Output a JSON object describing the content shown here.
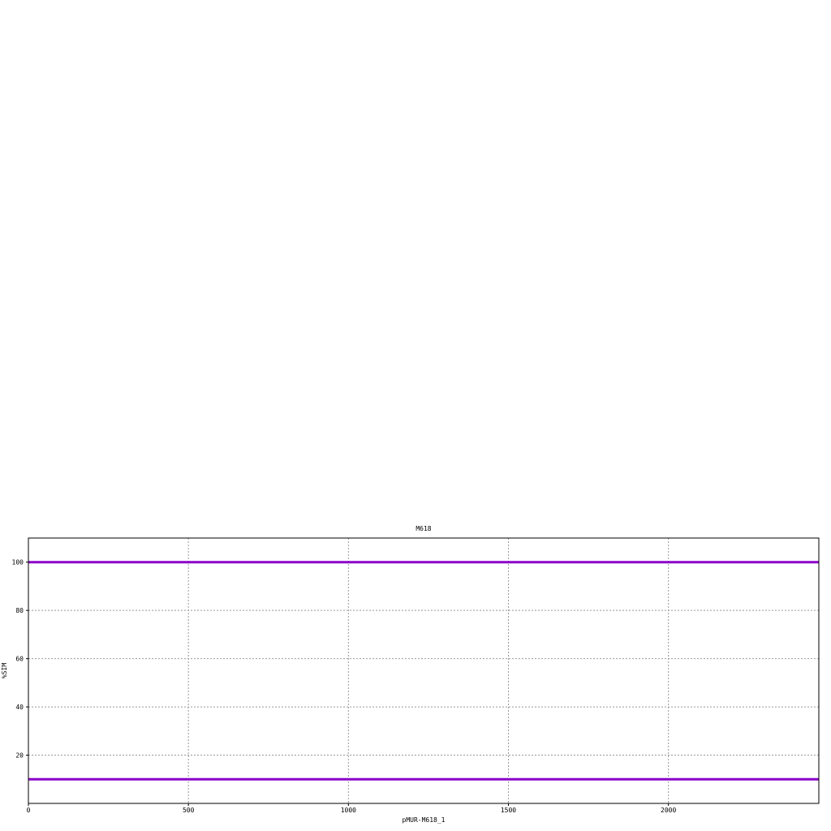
{
  "chart_data": {
    "type": "line",
    "title": "M618",
    "xlabel": "pMUR-M618_1",
    "ylabel": "%SIM",
    "xlim": [
      0,
      2470
    ],
    "ylim": [
      0,
      110
    ],
    "x_ticks": [
      0,
      500,
      1000,
      1500,
      2000
    ],
    "y_ticks": [
      20,
      40,
      60,
      80,
      100
    ],
    "grid": true,
    "series": [
      {
        "x": [
          0,
          2470
        ],
        "values": [
          100,
          100
        ],
        "color": "#8a00c8"
      },
      {
        "x": [
          0,
          2470
        ],
        "values": [
          10,
          10
        ],
        "color": "#8a00c8"
      }
    ]
  }
}
